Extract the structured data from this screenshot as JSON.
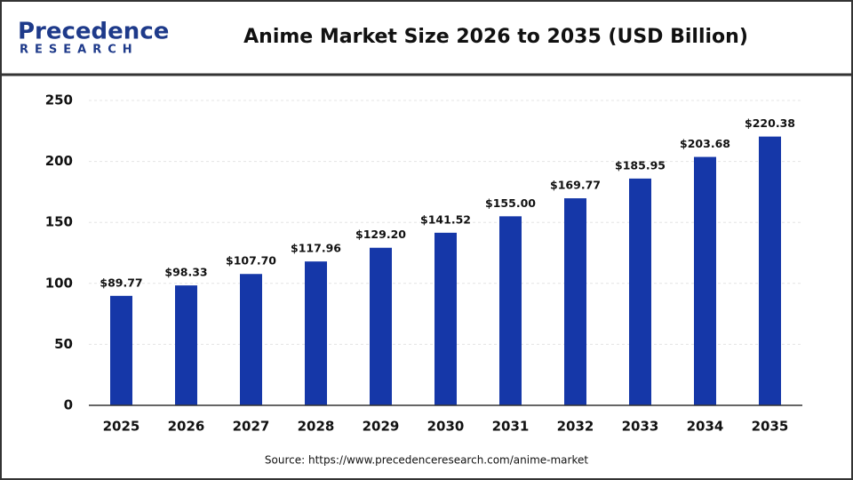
{
  "logo": {
    "name": "Precedence",
    "sub": "RESEARCH"
  },
  "chart_data": {
    "type": "bar",
    "title": "Anime Market Size 2026 to 2035 (USD Billion)",
    "categories": [
      "2025",
      "2026",
      "2027",
      "2028",
      "2029",
      "2030",
      "2031",
      "2032",
      "2033",
      "2034",
      "2035"
    ],
    "values": [
      89.77,
      98.33,
      107.7,
      117.96,
      129.2,
      141.52,
      155.0,
      169.77,
      185.95,
      203.68,
      220.38
    ],
    "value_labels": [
      "$89.77",
      "$98.33",
      "$107.70",
      "$117.96",
      "$129.20",
      "$141.52",
      "$155.00",
      "$169.77",
      "$185.95",
      "$203.68",
      "$220.38"
    ],
    "color": "#1537a8",
    "ylim": [
      0,
      250
    ],
    "yticks": [
      0,
      50,
      100,
      150,
      200,
      250
    ],
    "grid": true,
    "source": "Source: https://www.precedenceresearch.com/anime-market"
  }
}
